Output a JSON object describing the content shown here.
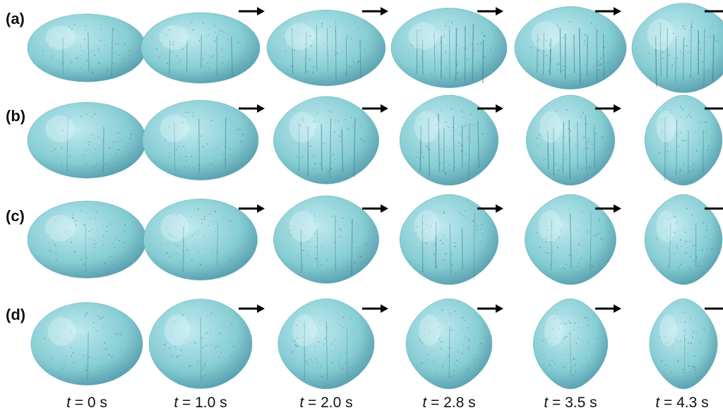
{
  "rows": [
    {
      "label": "(a)",
      "aspects": [
        2.0,
        1.85,
        1.6,
        1.45,
        1.35,
        1.15
      ],
      "striations": [
        0.25,
        0.45,
        0.7,
        0.9,
        0.95,
        0.9
      ]
    },
    {
      "label": "(b)",
      "aspects": [
        1.6,
        1.45,
        1.2,
        1.05,
        0.85,
        0.65
      ],
      "striations": [
        0.15,
        0.3,
        0.55,
        0.75,
        0.7,
        0.4
      ]
    },
    {
      "label": "(c)",
      "aspects": [
        1.55,
        1.4,
        1.2,
        1.05,
        0.9,
        0.65
      ],
      "striations": [
        0.05,
        0.15,
        0.35,
        0.5,
        0.3,
        0.15
      ]
    },
    {
      "label": "(d)",
      "aspects": [
        1.35,
        1.15,
        1.0,
        0.8,
        0.6,
        0.5
      ],
      "striations": [
        0.05,
        0.1,
        0.3,
        0.1,
        0.05,
        0.05
      ]
    }
  ],
  "times": [
    "0",
    "1.0",
    "2.0",
    "2.8",
    "3.5",
    "4.3"
  ],
  "time_var": "t",
  "time_unit": "s",
  "colors": {
    "drop_light": "#bfeaf0",
    "drop_mid": "#86cdd3",
    "drop_dark": "#4a8fa3",
    "arrow": "#000000"
  },
  "icons": {
    "arrow": "arrow-right-icon"
  }
}
